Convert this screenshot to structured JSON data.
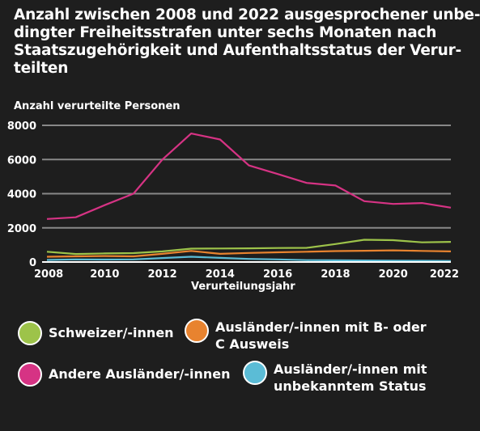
{
  "title_lines": [
    "Anzahl zwischen 2008 und 2022 ausgesprochener unbe-",
    "dingter Freiheitsstrafen unter sechs Monaten nach",
    "Staatszugehörigkeit und Aufenthaltsstatus der Verur-",
    "teilten"
  ],
  "chart_data": {
    "type": "line",
    "title": "Anzahl zwischen 2008 und 2022 ausgesprochener unbedingter Freiheitsstrafen unter sechs Monaten nach Staatszugehörigkeit und Aufenthaltsstatus der Verurteilten",
    "xlabel": "Verurteilungsjahr",
    "ylabel": "Anzahl verurteilte Personen",
    "ylim": [
      0,
      8000
    ],
    "yticks": [
      "0",
      "2000",
      "4000",
      "6000",
      "8000"
    ],
    "xlim": [
      2008,
      2022
    ],
    "xticks": [
      "2008",
      "2010",
      "2012",
      "2014",
      "2016",
      "2018",
      "2020",
      "2022"
    ],
    "grid": true,
    "x": [
      2008,
      2009,
      2010,
      2011,
      2012,
      2013,
      2014,
      2015,
      2016,
      2017,
      2018,
      2019,
      2020,
      2021,
      2022
    ],
    "series": [
      {
        "name": "Schweizer/-innen",
        "color": "#9dc34a",
        "values": [
          600,
          470,
          500,
          520,
          620,
          780,
          790,
          800,
          820,
          830,
          1050,
          1300,
          1280,
          1150,
          1180
        ]
      },
      {
        "name": "Ausländer/-innen mit B- oder C Ausweis",
        "color": "#e8832f",
        "values": [
          310,
          330,
          350,
          330,
          480,
          650,
          480,
          530,
          570,
          600,
          640,
          660,
          680,
          650,
          620
        ]
      },
      {
        "name": "Andere Ausländer/-innen",
        "color": "#d63384",
        "values": [
          2520,
          2620,
          3330,
          4000,
          6000,
          7520,
          7170,
          5650,
          5150,
          4630,
          4480,
          3560,
          3400,
          3450,
          3180
        ]
      },
      {
        "name": "Ausländer/-innen mit unbekanntem Status",
        "color": "#5bbcd6",
        "values": [
          120,
          150,
          140,
          150,
          230,
          310,
          240,
          180,
          150,
          110,
          100,
          90,
          80,
          70,
          60
        ]
      }
    ],
    "legend_position": "bottom"
  },
  "legend": [
    {
      "label": "Schweizer/-innen",
      "color": "#9dc34a"
    },
    {
      "label": "Ausländer/-innen mit B- oder\nC Ausweis",
      "color": "#e8832f"
    },
    {
      "label": "Andere Ausländer/-innen",
      "color": "#d63384"
    },
    {
      "label": "Ausländer/-innen mit\nunbekanntem Status",
      "color": "#5bbcd6"
    }
  ]
}
